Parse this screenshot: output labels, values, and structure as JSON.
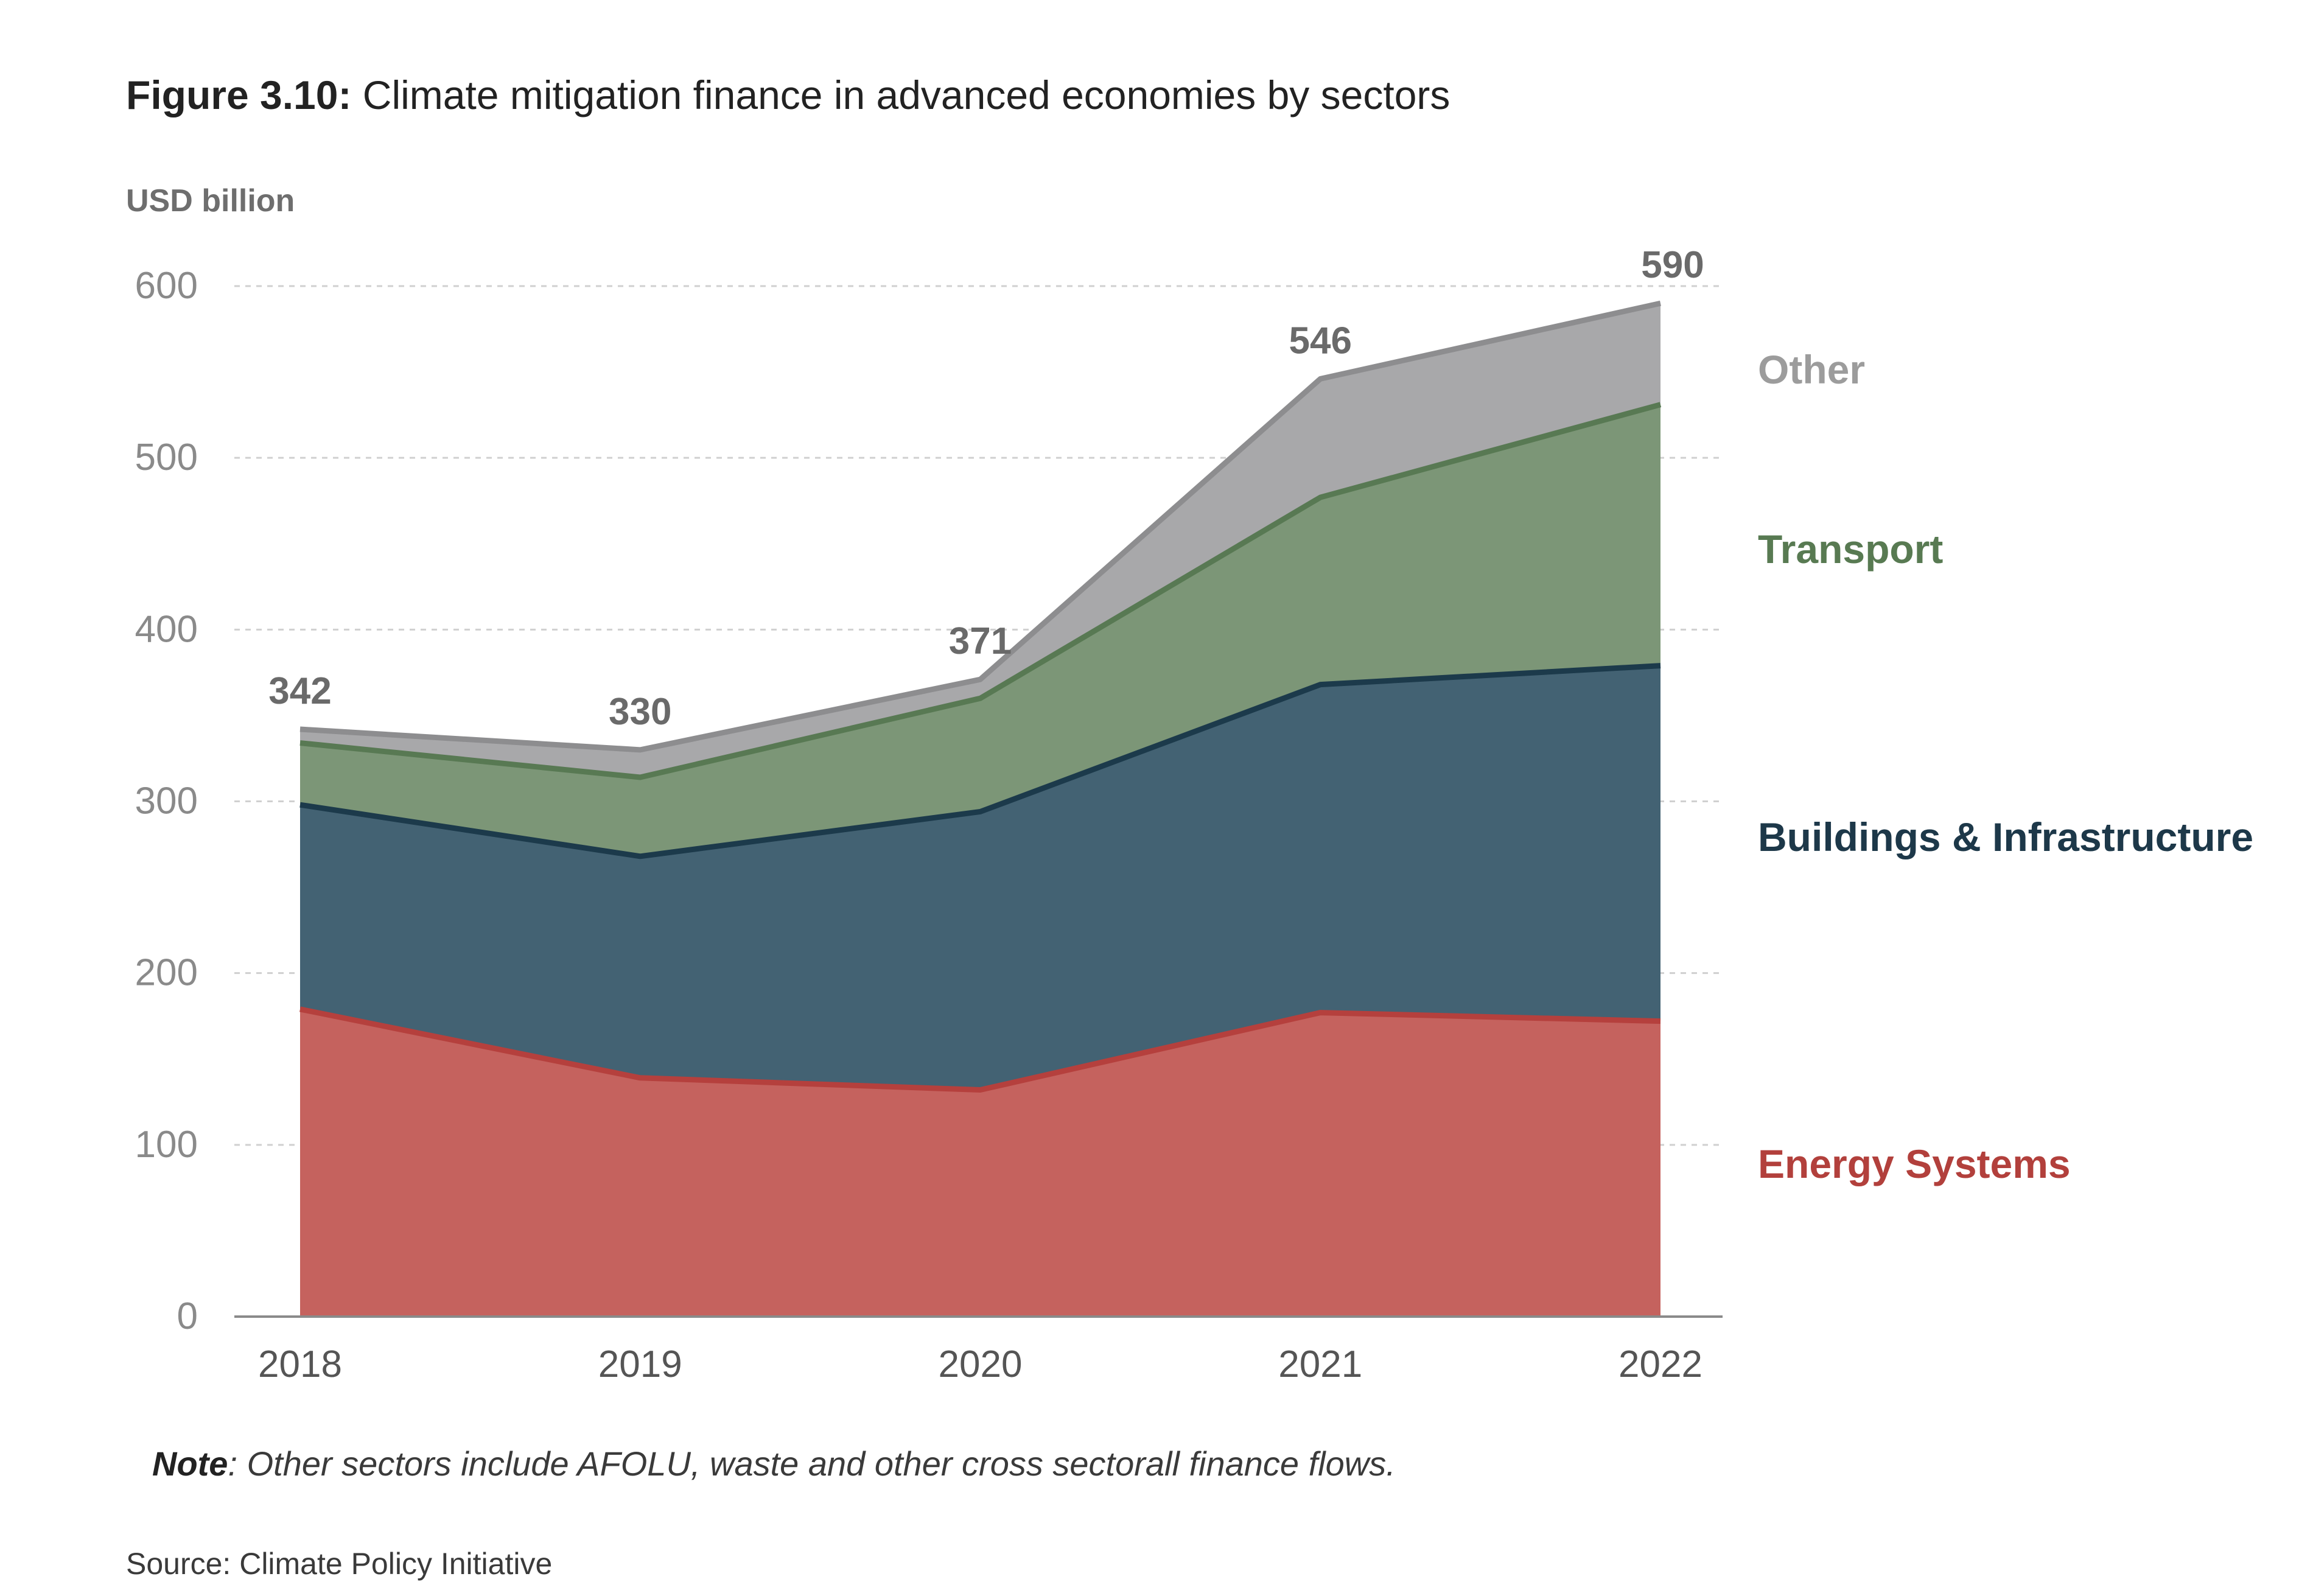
{
  "figure": {
    "label": "Figure 3.10:",
    "title": "Climate mitigation finance in advanced economies by sectors"
  },
  "unit_label": "USD billion",
  "note": {
    "label": "Note",
    "text": ": Other sectors include AFOLU, waste and other cross sectorall finance flows."
  },
  "source": "Source: Climate Policy Initiative",
  "chart_data": {
    "type": "area",
    "stacked": true,
    "x": [
      "2018",
      "2019",
      "2020",
      "2021",
      "2022"
    ],
    "ylim": [
      0,
      600
    ],
    "yticks": [
      0,
      100,
      200,
      300,
      400,
      500,
      600
    ],
    "ylabel": "USD billion",
    "grid": true,
    "legend_placement": "right",
    "series": [
      {
        "name": "Energy Systems",
        "values": [
          179,
          139,
          132,
          177,
          172
        ],
        "fill": "#c5625e",
        "line": "#b5403d",
        "label_color": "#b2403c"
      },
      {
        "name": "Buildings & Infrastructure",
        "values": [
          119,
          129,
          162,
          191,
          207
        ],
        "fill": "#436273",
        "line": "#1c3a4b",
        "label_color": "#1d3849"
      },
      {
        "name": "Transport",
        "values": [
          36,
          46,
          66,
          109,
          152
        ],
        "fill": "#7c9677",
        "line": "#587953",
        "label_color": "#587a52"
      },
      {
        "name": "Other",
        "values": [
          8,
          16,
          11,
          69,
          59
        ],
        "fill": "#a8a8aa",
        "line": "#8d8d8f",
        "label_color": "#9c9c9c"
      }
    ],
    "totals": [
      342,
      330,
      371,
      546,
      590
    ]
  }
}
